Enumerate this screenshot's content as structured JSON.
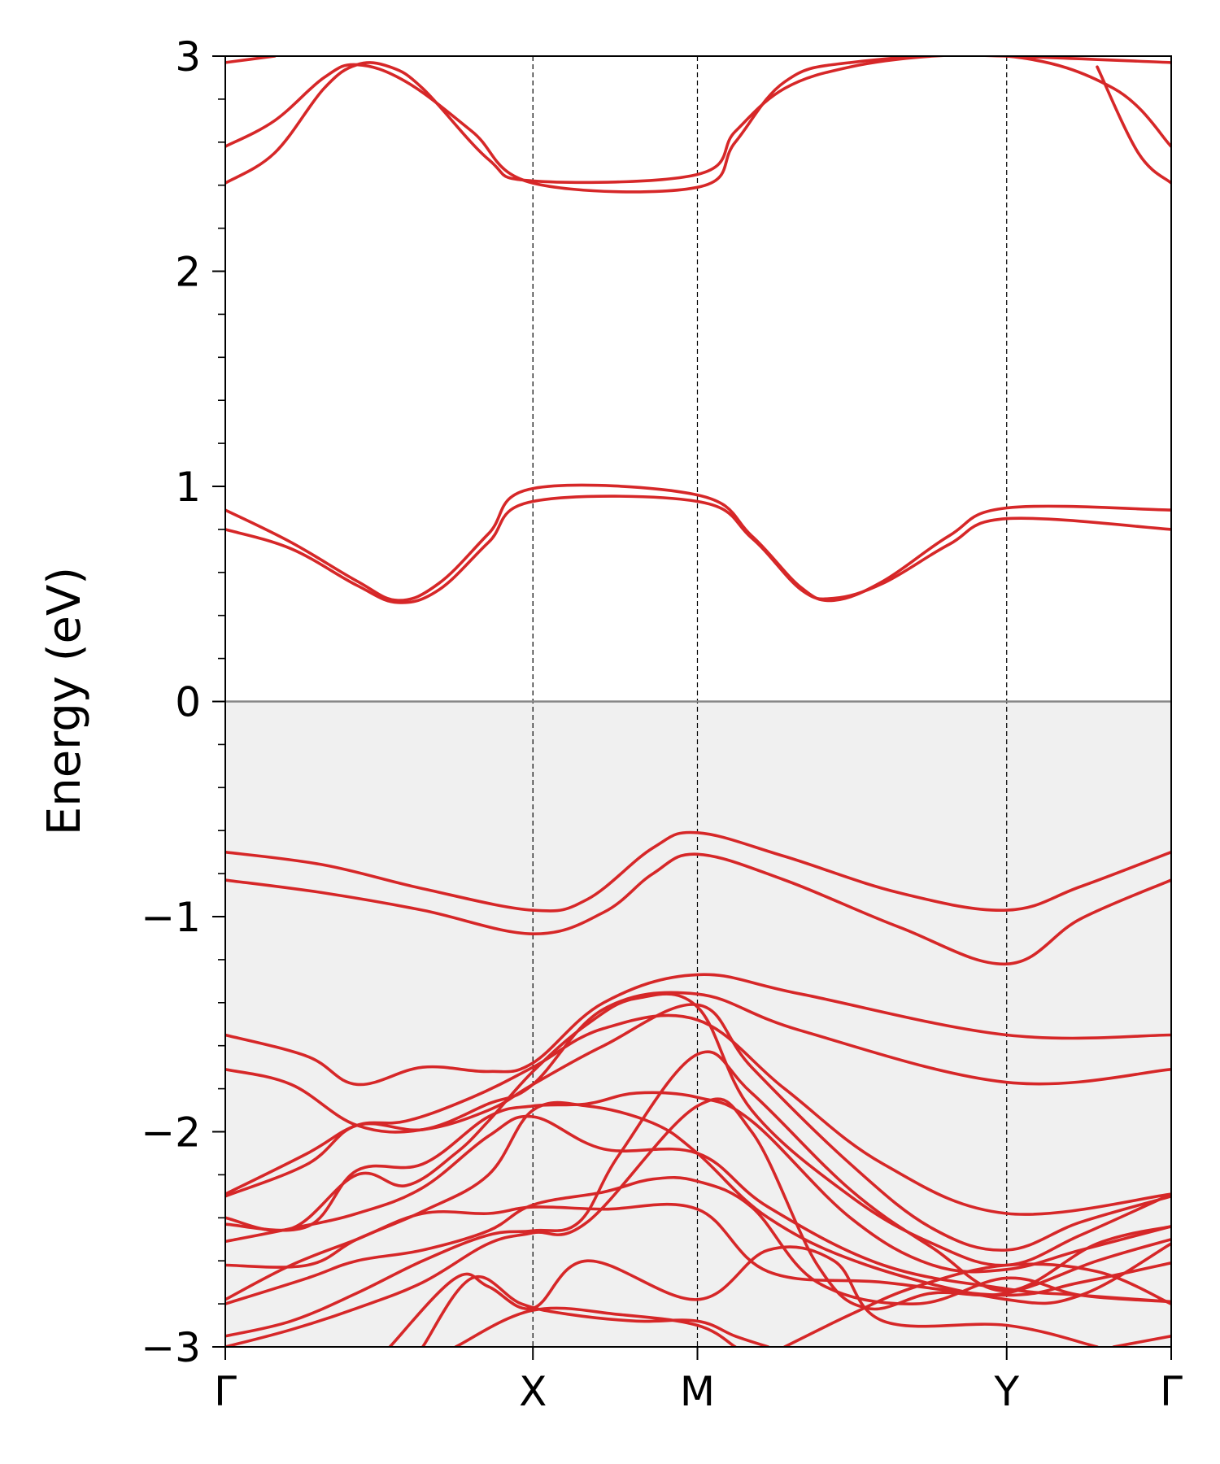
{
  "chart_data": {
    "type": "line",
    "title": "",
    "xlabel": "",
    "ylabel": "Energy (eV)",
    "ylim": [
      -3,
      3
    ],
    "xlim": [
      0,
      5.75
    ],
    "y_ticks": [
      -3,
      -2,
      -1,
      0,
      1,
      2,
      3
    ],
    "y_tick_labels": [
      "−3",
      "−2",
      "−1",
      "0",
      "1",
      "2",
      "3"
    ],
    "minor_y_step": 0.2,
    "k_points": [
      {
        "label": "Γ",
        "x": 0
      },
      {
        "label": "X",
        "x": 1.87
      },
      {
        "label": "M",
        "x": 2.87
      },
      {
        "label": "Y",
        "x": 4.75
      },
      {
        "label": "Γ",
        "x": 5.75
      }
    ],
    "fermi_level": 0,
    "occupied_region_shaded": true,
    "colors": {
      "bands": "#d62728",
      "fermi_line": "#888888",
      "occupied_fill": "#f0f0f0",
      "kpoint_lines": "#000000"
    },
    "series": [
      {
        "values": [
          [
            0,
            0.89
          ],
          [
            0.4,
            0.74
          ],
          [
            0.8,
            0.56
          ],
          [
            1.05,
            0.47
          ],
          [
            1.3,
            0.55
          ],
          [
            1.6,
            0.78
          ],
          [
            1.87,
            0.99
          ],
          [
            2.87,
            0.96
          ],
          [
            3.2,
            0.77
          ],
          [
            3.5,
            0.53
          ],
          [
            3.7,
            0.47
          ],
          [
            4.0,
            0.56
          ],
          [
            4.4,
            0.77
          ],
          [
            4.75,
            0.9
          ],
          [
            5.75,
            0.89
          ]
        ]
      },
      {
        "values": [
          [
            0,
            0.8
          ],
          [
            0.4,
            0.71
          ],
          [
            0.8,
            0.54
          ],
          [
            1.05,
            0.46
          ],
          [
            1.3,
            0.52
          ],
          [
            1.6,
            0.74
          ],
          [
            1.87,
            0.93
          ],
          [
            2.87,
            0.93
          ],
          [
            3.2,
            0.76
          ],
          [
            3.5,
            0.52
          ],
          [
            3.7,
            0.48
          ],
          [
            4.0,
            0.55
          ],
          [
            4.4,
            0.73
          ],
          [
            4.75,
            0.85
          ],
          [
            5.75,
            0.8
          ]
        ]
      },
      {
        "values": [
          [
            0,
            2.41
          ],
          [
            0.3,
            2.55
          ],
          [
            0.6,
            2.85
          ],
          [
            0.8,
            2.96
          ],
          [
            1.0,
            2.95
          ],
          [
            1.2,
            2.85
          ],
          [
            1.6,
            2.52
          ],
          [
            1.87,
            2.42
          ],
          [
            2.87,
            2.45
          ],
          [
            3.1,
            2.65
          ],
          [
            3.4,
            2.85
          ],
          [
            3.8,
            2.95
          ],
          [
            4.3,
            3.0
          ],
          [
            4.75,
            3.0
          ],
          [
            5.75,
            2.97
          ]
        ]
      },
      {
        "values": [
          [
            0,
            2.58
          ],
          [
            0.3,
            2.7
          ],
          [
            0.6,
            2.9
          ],
          [
            0.8,
            2.96
          ],
          [
            1.1,
            2.88
          ],
          [
            1.5,
            2.65
          ],
          [
            1.87,
            2.41
          ],
          [
            2.87,
            2.39
          ],
          [
            3.1,
            2.6
          ],
          [
            3.4,
            2.88
          ],
          [
            3.8,
            2.97
          ],
          [
            4.75,
            3.0
          ],
          [
            5.4,
            2.85
          ],
          [
            5.75,
            2.58
          ]
        ]
      },
      {
        "values": [
          [
            0,
            2.97
          ],
          [
            0.3,
            3.0
          ]
        ]
      },
      {
        "values": [
          [
            5.3,
            2.95
          ],
          [
            5.55,
            2.55
          ],
          [
            5.75,
            2.41
          ]
        ]
      },
      {
        "values": [
          [
            0,
            -0.7
          ],
          [
            0.6,
            -0.76
          ],
          [
            1.2,
            -0.87
          ],
          [
            1.87,
            -0.97
          ],
          [
            2.2,
            -0.92
          ],
          [
            2.6,
            -0.68
          ],
          [
            2.87,
            -0.61
          ],
          [
            3.4,
            -0.72
          ],
          [
            4.1,
            -0.89
          ],
          [
            4.75,
            -0.97
          ],
          [
            5.2,
            -0.86
          ],
          [
            5.75,
            -0.7
          ]
        ]
      },
      {
        "values": [
          [
            0,
            -0.83
          ],
          [
            0.6,
            -0.89
          ],
          [
            1.2,
            -0.97
          ],
          [
            1.87,
            -1.08
          ],
          [
            2.3,
            -0.98
          ],
          [
            2.6,
            -0.8
          ],
          [
            2.87,
            -0.71
          ],
          [
            3.4,
            -0.83
          ],
          [
            4.1,
            -1.05
          ],
          [
            4.75,
            -1.22
          ],
          [
            5.2,
            -1.01
          ],
          [
            5.75,
            -0.83
          ]
        ]
      },
      {
        "values": [
          [
            0,
            -1.55
          ],
          [
            0.5,
            -1.65
          ],
          [
            0.8,
            -1.78
          ],
          [
            1.2,
            -1.7
          ],
          [
            1.6,
            -1.72
          ],
          [
            1.87,
            -1.68
          ],
          [
            2.3,
            -1.4
          ],
          [
            2.87,
            -1.27
          ],
          [
            3.5,
            -1.36
          ],
          [
            4.75,
            -1.55
          ],
          [
            5.75,
            -1.55
          ]
        ]
      },
      {
        "values": [
          [
            0,
            -1.71
          ],
          [
            0.4,
            -1.78
          ],
          [
            0.8,
            -1.97
          ],
          [
            1.2,
            -1.99
          ],
          [
            1.6,
            -1.87
          ],
          [
            1.87,
            -1.78
          ],
          [
            2.3,
            -1.43
          ],
          [
            2.87,
            -1.36
          ],
          [
            3.5,
            -1.53
          ],
          [
            4.75,
            -1.77
          ],
          [
            5.75,
            -1.71
          ]
        ]
      },
      {
        "values": [
          [
            0,
            -2.29
          ],
          [
            0.5,
            -2.1
          ],
          [
            0.8,
            -1.97
          ],
          [
            1.1,
            -1.95
          ],
          [
            1.5,
            -1.84
          ],
          [
            1.87,
            -1.7
          ],
          [
            2.3,
            -1.52
          ],
          [
            2.87,
            -1.48
          ],
          [
            3.4,
            -1.8
          ],
          [
            4.0,
            -2.15
          ],
          [
            4.75,
            -2.38
          ],
          [
            5.75,
            -2.29
          ]
        ]
      },
      {
        "values": [
          [
            0,
            -2.3
          ],
          [
            0.5,
            -2.15
          ],
          [
            0.8,
            -1.97
          ],
          [
            1.2,
            -1.99
          ],
          [
            1.6,
            -1.9
          ],
          [
            1.87,
            -1.78
          ],
          [
            2.3,
            -1.6
          ],
          [
            2.87,
            -1.41
          ],
          [
            3.2,
            -1.7
          ],
          [
            3.8,
            -2.15
          ],
          [
            4.3,
            -2.45
          ],
          [
            4.75,
            -2.55
          ],
          [
            5.2,
            -2.42
          ],
          [
            5.75,
            -2.3
          ]
        ]
      },
      {
        "values": [
          [
            0,
            -2.4
          ],
          [
            0.4,
            -2.45
          ],
          [
            0.8,
            -2.2
          ],
          [
            1.1,
            -2.25
          ],
          [
            1.4,
            -2.1
          ],
          [
            1.6,
            -1.95
          ],
          [
            1.87,
            -1.72
          ],
          [
            2.2,
            -1.5
          ],
          [
            2.5,
            -1.38
          ],
          [
            2.87,
            -1.42
          ],
          [
            3.2,
            -1.9
          ],
          [
            3.8,
            -2.3
          ],
          [
            4.3,
            -2.52
          ],
          [
            4.75,
            -2.62
          ],
          [
            5.2,
            -2.48
          ],
          [
            5.75,
            -2.29
          ]
        ]
      },
      {
        "values": [
          [
            0,
            -2.43
          ],
          [
            0.5,
            -2.44
          ],
          [
            0.8,
            -2.18
          ],
          [
            1.2,
            -2.15
          ],
          [
            1.6,
            -1.93
          ],
          [
            1.87,
            -1.88
          ],
          [
            2.2,
            -1.87
          ],
          [
            2.5,
            -1.82
          ],
          [
            2.87,
            -1.84
          ],
          [
            3.2,
            -1.95
          ],
          [
            3.8,
            -2.4
          ],
          [
            4.3,
            -2.62
          ],
          [
            4.75,
            -2.64
          ],
          [
            5.2,
            -2.55
          ],
          [
            5.75,
            -2.44
          ]
        ]
      },
      {
        "values": [
          [
            0,
            -2.51
          ],
          [
            0.4,
            -2.45
          ],
          [
            0.8,
            -2.38
          ],
          [
            1.2,
            -2.26
          ],
          [
            1.6,
            -2.02
          ],
          [
            1.87,
            -1.93
          ],
          [
            2.3,
            -2.08
          ],
          [
            2.87,
            -2.1
          ],
          [
            3.3,
            -2.35
          ],
          [
            4.0,
            -2.62
          ],
          [
            4.75,
            -2.73
          ],
          [
            5.2,
            -2.76
          ],
          [
            5.75,
            -2.79
          ]
        ]
      },
      {
        "values": [
          [
            0,
            -2.62
          ],
          [
            0.5,
            -2.62
          ],
          [
            0.8,
            -2.5
          ],
          [
            1.2,
            -2.37
          ],
          [
            1.6,
            -2.2
          ],
          [
            1.87,
            -1.9
          ],
          [
            2.2,
            -1.88
          ],
          [
            2.6,
            -1.96
          ],
          [
            2.87,
            -2.1
          ],
          [
            3.3,
            -2.4
          ],
          [
            3.9,
            -2.62
          ],
          [
            4.75,
            -2.78
          ],
          [
            5.2,
            -2.76
          ],
          [
            5.75,
            -2.52
          ]
        ]
      },
      {
        "values": [
          [
            0,
            -2.78
          ],
          [
            0.4,
            -2.62
          ],
          [
            0.8,
            -2.5
          ],
          [
            1.2,
            -2.38
          ],
          [
            1.6,
            -2.38
          ],
          [
            1.87,
            -2.35
          ],
          [
            2.3,
            -2.36
          ],
          [
            2.87,
            -2.36
          ],
          [
            3.3,
            -2.65
          ],
          [
            4.0,
            -2.7
          ],
          [
            4.75,
            -2.76
          ],
          [
            5.2,
            -2.7
          ],
          [
            5.75,
            -2.61
          ]
        ]
      },
      {
        "values": [
          [
            0,
            -2.8
          ],
          [
            0.5,
            -2.68
          ],
          [
            0.8,
            -2.6
          ],
          [
            1.2,
            -2.55
          ],
          [
            1.6,
            -2.46
          ],
          [
            1.87,
            -2.34
          ],
          [
            2.3,
            -2.28
          ],
          [
            2.6,
            -2.22
          ],
          [
            2.87,
            -2.23
          ],
          [
            3.2,
            -2.35
          ],
          [
            3.6,
            -2.7
          ],
          [
            4.2,
            -2.8
          ],
          [
            4.75,
            -2.68
          ],
          [
            5.2,
            -2.76
          ],
          [
            5.75,
            -2.79
          ]
        ]
      },
      {
        "values": [
          [
            0,
            -2.95
          ],
          [
            0.4,
            -2.88
          ],
          [
            0.8,
            -2.75
          ],
          [
            1.2,
            -2.6
          ],
          [
            1.6,
            -2.48
          ],
          [
            1.87,
            -2.46
          ],
          [
            2.15,
            -2.42
          ],
          [
            2.4,
            -2.1
          ],
          [
            2.87,
            -1.64
          ],
          [
            3.2,
            -1.82
          ],
          [
            3.8,
            -2.27
          ],
          [
            4.3,
            -2.54
          ],
          [
            4.75,
            -2.74
          ],
          [
            5.3,
            -2.52
          ],
          [
            5.75,
            -2.44
          ]
        ]
      },
      {
        "values": [
          [
            0,
            -3.0
          ],
          [
            0.4,
            -2.92
          ],
          [
            0.8,
            -2.82
          ],
          [
            1.2,
            -2.7
          ],
          [
            1.6,
            -2.52
          ],
          [
            1.87,
            -2.47
          ],
          [
            2.2,
            -2.42
          ],
          [
            2.87,
            -1.88
          ],
          [
            3.2,
            -2.0
          ],
          [
            3.6,
            -2.62
          ],
          [
            3.9,
            -2.82
          ],
          [
            4.3,
            -2.75
          ],
          [
            4.75,
            -2.75
          ],
          [
            5.3,
            -2.6
          ],
          [
            5.75,
            -2.5
          ]
        ]
      },
      {
        "values": [
          [
            1.0,
            -3.0
          ],
          [
            1.4,
            -2.68
          ],
          [
            1.6,
            -2.72
          ],
          [
            1.87,
            -2.82
          ],
          [
            2.2,
            -2.6
          ],
          [
            2.87,
            -2.78
          ],
          [
            3.3,
            -2.55
          ],
          [
            3.7,
            -2.6
          ],
          [
            4.0,
            -2.88
          ],
          [
            4.75,
            -2.9
          ],
          [
            5.3,
            -3.0
          ]
        ]
      },
      {
        "values": [
          [
            1.2,
            -3.0
          ],
          [
            1.5,
            -2.68
          ],
          [
            1.8,
            -2.8
          ],
          [
            2.1,
            -2.85
          ],
          [
            2.5,
            -2.88
          ],
          [
            2.87,
            -2.88
          ],
          [
            3.1,
            -2.95
          ],
          [
            3.3,
            -3.0
          ]
        ]
      },
      {
        "values": [
          [
            1.4,
            -3.0
          ],
          [
            1.87,
            -2.83
          ],
          [
            2.4,
            -2.85
          ],
          [
            2.87,
            -2.9
          ],
          [
            3.1,
            -3.0
          ]
        ]
      },
      {
        "values": [
          [
            3.4,
            -3.0
          ],
          [
            3.8,
            -2.85
          ],
          [
            4.2,
            -2.72
          ],
          [
            4.75,
            -2.62
          ],
          [
            5.3,
            -2.65
          ],
          [
            5.75,
            -2.8
          ]
        ]
      },
      {
        "values": [
          [
            5.4,
            -3.0
          ],
          [
            5.75,
            -2.95
          ]
        ]
      }
    ]
  }
}
